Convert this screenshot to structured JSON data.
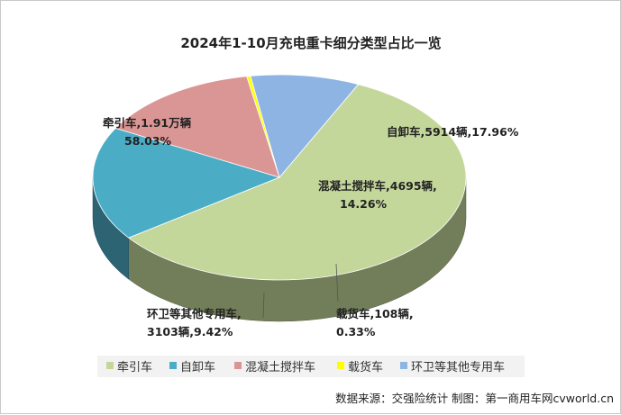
{
  "chart_data": {
    "type": "pie",
    "title": "2024年1-10月充电重卡细分类型占比一览",
    "series": [
      {
        "name": "牵引车",
        "value": 58.03,
        "label_line1": "牵引车,1.91万辆",
        "label_line2": "58.03%",
        "color": "#c4d79b"
      },
      {
        "name": "自卸车",
        "value": 17.96,
        "label_line1": "自卸车,5914辆,17.96%",
        "label_line2": "",
        "color": "#4bacc6"
      },
      {
        "name": "混凝土搅拌车",
        "value": 14.26,
        "label_line1": "混凝土搅拌车,4695辆,",
        "label_line2": "14.26%",
        "color": "#da9694"
      },
      {
        "name": "载货车",
        "value": 0.33,
        "label_line1": "载货车,108辆,",
        "label_line2": "0.33%",
        "color": "#ffff00"
      },
      {
        "name": "环卫等其他专用车",
        "value": 9.42,
        "label_line1": "环卫等其他专用车,",
        "label_line2": "3103辆,9.42%",
        "color": "#8db4e2"
      }
    ],
    "legend_position": "bottom"
  },
  "source_note": "数据来源：交强险统计 制图：第一商用车网cvworld.cn"
}
